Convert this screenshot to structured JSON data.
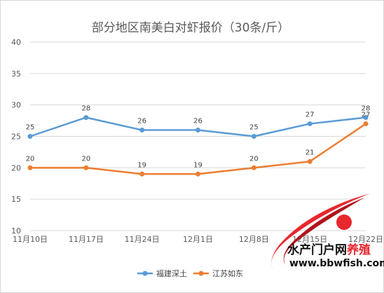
{
  "chart_data": {
    "type": "line",
    "title": "部分地区南美白对虾报价（30条/斤）",
    "categories": [
      "11月10日",
      "11月17日",
      "11月24日",
      "12月1日",
      "12月8日",
      "12月15日",
      "12月22日"
    ],
    "yticks": [
      "10",
      "15",
      "20",
      "25",
      "30",
      "35",
      "40"
    ],
    "ylim": [
      10,
      40
    ],
    "grid": true,
    "legend_position": "bottom",
    "series": [
      {
        "name": "福建深土",
        "color": "#5b9bd5",
        "values": [
          25,
          28,
          26,
          26,
          25,
          27,
          28
        ]
      },
      {
        "name": "江苏如东",
        "color": "#ed7d31",
        "values": [
          20,
          20,
          19,
          19,
          20,
          21,
          27
        ]
      }
    ]
  },
  "watermark": {
    "text_cn_black": "水产门户网",
    "text_cn_red": "养殖",
    "url": "www.bbwfish.com",
    "logo_colors": [
      "#e8272e",
      "#b0141b"
    ]
  }
}
